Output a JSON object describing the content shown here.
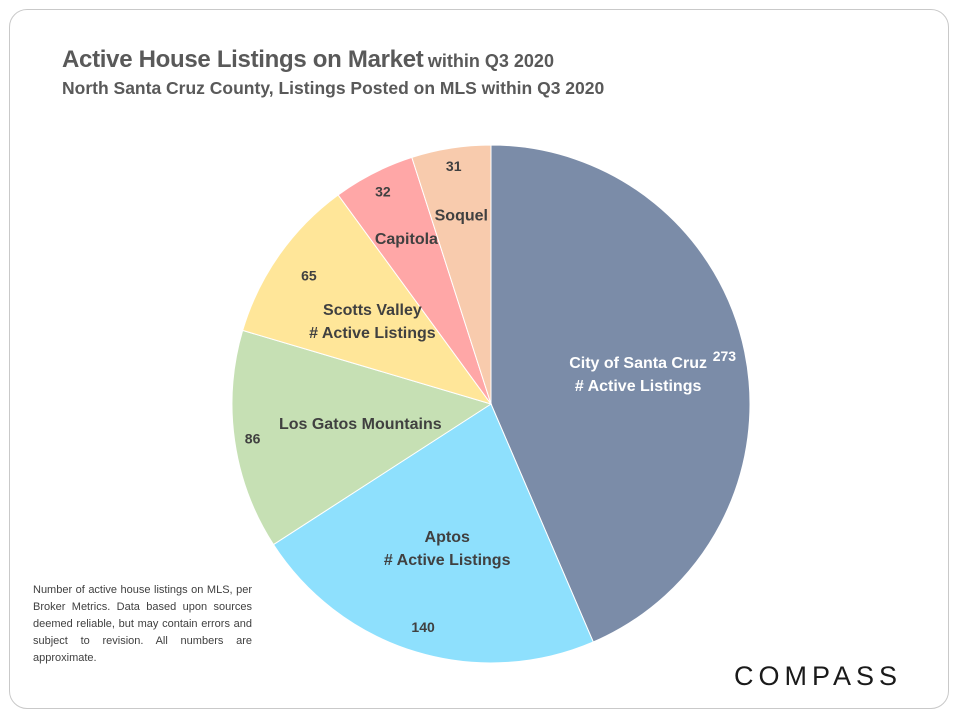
{
  "title": {
    "main": "Active House Listings on Market",
    "suffix": "within Q3 2020"
  },
  "subtitle": "North Santa Cruz County, Listings Posted on MLS within Q3 2020",
  "footnote": "Number of active house listings on MLS, per Broker Metrics. Data based upon sources deemed reliable, but may contain errors and subject to revision. All numbers are approximate.",
  "logo_text": "COMPASS",
  "chart_data": {
    "type": "pie",
    "title": "Active House Listings on Market within Q3 2020",
    "start": "12 o'clock",
    "direction": "clockwise",
    "slices": [
      {
        "label": "City of Santa Cruz",
        "sublabel": "# Active Listings",
        "value": 273,
        "color": "#7b8ca8"
      },
      {
        "label": "Aptos",
        "sublabel": "# Active Listings",
        "value": 140,
        "color": "#8ee0fd"
      },
      {
        "label": "Los Gatos Mountains",
        "sublabel": "",
        "value": 86,
        "color": "#c6e0b4"
      },
      {
        "label": "Scotts Valley",
        "sublabel": "# Active Listings",
        "value": 65,
        "color": "#ffe699"
      },
      {
        "label": "Capitola",
        "sublabel": "",
        "value": 32,
        "color": "#ffa7a7"
      },
      {
        "label": "Soquel",
        "sublabel": "",
        "value": 31,
        "color": "#f8cbad"
      }
    ]
  }
}
